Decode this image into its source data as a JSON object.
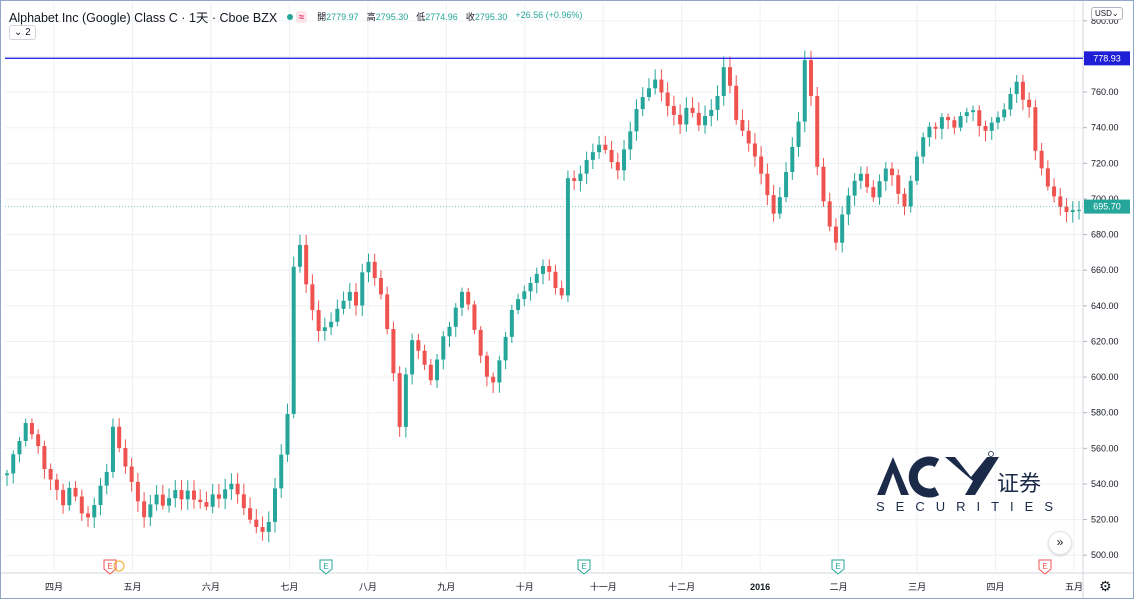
{
  "header": {
    "symbol": "Alphabet Inc (Google) Class C · 1天 · Cboe BZX",
    "badge": "≈",
    "open_label": "開",
    "open": "2779.97",
    "high_label": "高",
    "high": "2795.30",
    "low_label": "低",
    "low": "2774.96",
    "close_label": "收",
    "close": "2795.30",
    "change": "+26.56 (+0.96%)",
    "studies": "⌄ 2"
  },
  "currency": "USD⌄",
  "colors": {
    "up": "#26a69a",
    "down": "#ef5350",
    "hline": "#2a2ae8",
    "grid": "#eef0f4"
  },
  "logo": {
    "brand": "ACY",
    "cn": "证券",
    "sub": "SECURITIES"
  },
  "chart_data": {
    "type": "candlestick",
    "ylim": [
      490,
      810
    ],
    "y_ticks": [
      500,
      520,
      540,
      560,
      580,
      600,
      620,
      640,
      660,
      680,
      700,
      720,
      740,
      760,
      780,
      800
    ],
    "x_labels": [
      "四月",
      "五月",
      "六月",
      "七月",
      "八月",
      "九月",
      "十月",
      "十一月",
      "十二月",
      "2016",
      "二月",
      "三月",
      "四月",
      "五月"
    ],
    "horizontal_line": 778.93,
    "horizontal_line_label": "778.93",
    "last_price": 695.7,
    "last_price_label": "695.70",
    "earnings_markers": [
      "E",
      "E",
      "E",
      "E",
      "E"
    ],
    "path": [
      [
        545,
        1
      ],
      [
        555,
        2
      ],
      [
        562,
        3
      ],
      [
        572,
        4
      ],
      [
        560,
        6
      ],
      [
        548,
        7
      ],
      [
        538,
        9
      ],
      [
        530,
        10
      ],
      [
        540,
        11
      ],
      [
        535,
        12
      ],
      [
        525,
        13
      ],
      [
        522,
        14
      ],
      [
        528,
        15
      ],
      [
        538,
        16
      ],
      [
        545,
        17
      ],
      [
        570,
        18
      ],
      [
        558,
        19
      ],
      [
        548,
        20
      ],
      [
        540,
        21
      ],
      [
        530,
        22
      ],
      [
        522,
        23
      ],
      [
        530,
        24
      ],
      [
        536,
        25
      ],
      [
        530,
        26
      ],
      [
        534,
        27
      ],
      [
        538,
        28
      ],
      [
        532,
        29
      ],
      [
        536,
        30
      ],
      [
        530,
        31
      ],
      [
        528,
        32
      ],
      [
        525,
        33
      ],
      [
        532,
        34
      ],
      [
        530,
        35
      ],
      [
        536,
        36
      ],
      [
        540,
        37
      ],
      [
        535,
        38
      ],
      [
        528,
        39
      ],
      [
        522,
        40
      ],
      [
        518,
        41
      ],
      [
        515,
        42
      ],
      [
        520,
        43
      ],
      [
        538,
        44
      ],
      [
        556,
        45
      ],
      [
        578,
        46
      ],
      [
        660,
        47
      ],
      [
        672,
        48
      ],
      [
        650,
        49
      ],
      [
        636,
        50
      ],
      [
        625,
        51
      ],
      [
        628,
        52
      ],
      [
        632,
        53
      ],
      [
        640,
        54
      ],
      [
        645,
        55
      ],
      [
        650,
        56
      ],
      [
        642,
        57
      ],
      [
        660,
        58
      ],
      [
        665,
        59
      ],
      [
        655,
        60
      ],
      [
        645,
        61
      ],
      [
        625,
        62
      ],
      [
        600,
        63
      ],
      [
        570,
        64
      ],
      [
        600,
        65
      ],
      [
        620,
        66
      ],
      [
        615,
        67
      ],
      [
        608,
        68
      ],
      [
        600,
        69
      ],
      [
        612,
        70
      ],
      [
        625,
        71
      ],
      [
        630,
        72
      ],
      [
        640,
        73
      ],
      [
        648,
        74
      ],
      [
        640,
        75
      ],
      [
        625,
        76
      ],
      [
        610,
        77
      ],
      [
        598,
        78
      ],
      [
        595,
        79
      ],
      [
        608,
        80
      ],
      [
        622,
        81
      ],
      [
        638,
        82
      ],
      [
        645,
        83
      ],
      [
        650,
        84
      ],
      [
        655,
        85
      ],
      [
        660,
        86
      ],
      [
        664,
        87
      ],
      [
        660,
        88
      ],
      [
        650,
        89
      ],
      [
        645,
        90
      ],
      [
        710,
        91
      ],
      [
        708,
        92
      ],
      [
        712,
        93
      ],
      [
        720,
        94
      ],
      [
        725,
        95
      ],
      [
        730,
        96
      ],
      [
        728,
        97
      ],
      [
        722,
        98
      ],
      [
        718,
        99
      ],
      [
        730,
        100
      ],
      [
        740,
        101
      ],
      [
        752,
        102
      ],
      [
        758,
        103
      ],
      [
        762,
        104
      ],
      [
        766,
        105
      ],
      [
        758,
        106
      ],
      [
        750,
        107
      ],
      [
        745,
        108
      ],
      [
        740,
        109
      ],
      [
        750,
        110
      ],
      [
        748,
        111
      ],
      [
        742,
        112
      ],
      [
        748,
        113
      ],
      [
        752,
        114
      ],
      [
        760,
        115
      ],
      [
        776,
        116
      ],
      [
        765,
        117
      ],
      [
        745,
        118
      ],
      [
        738,
        119
      ],
      [
        730,
        120
      ],
      [
        722,
        121
      ],
      [
        712,
        122
      ],
      [
        700,
        123
      ],
      [
        690,
        124
      ],
      [
        700,
        125
      ],
      [
        715,
        126
      ],
      [
        730,
        127
      ],
      [
        745,
        128
      ],
      [
        780,
        129
      ],
      [
        760,
        130
      ],
      [
        720,
        131
      ],
      [
        700,
        132
      ],
      [
        685,
        133
      ],
      [
        675,
        134
      ],
      [
        690,
        135
      ],
      [
        700,
        136
      ],
      [
        708,
        137
      ],
      [
        712,
        138
      ],
      [
        705,
        139
      ],
      [
        700,
        140
      ],
      [
        710,
        141
      ],
      [
        718,
        142
      ],
      [
        715,
        143
      ],
      [
        705,
        144
      ],
      [
        698,
        145
      ],
      [
        712,
        146
      ],
      [
        725,
        147
      ],
      [
        735,
        148
      ],
      [
        740,
        149
      ],
      [
        738,
        150
      ],
      [
        744,
        151
      ],
      [
        742,
        152
      ],
      [
        738,
        153
      ],
      [
        745,
        154
      ],
      [
        748,
        155
      ],
      [
        750,
        156
      ],
      [
        742,
        157
      ],
      [
        740,
        158
      ],
      [
        745,
        159
      ],
      [
        748,
        160
      ],
      [
        752,
        161
      ],
      [
        760,
        162
      ],
      [
        766,
        163
      ],
      [
        755,
        164
      ],
      [
        750,
        165
      ],
      [
        725,
        166
      ],
      [
        715,
        167
      ],
      [
        705,
        168
      ],
      [
        700,
        169
      ],
      [
        695,
        170
      ],
      [
        693,
        171
      ],
      [
        695,
        172
      ],
      [
        695.7,
        173
      ]
    ]
  }
}
